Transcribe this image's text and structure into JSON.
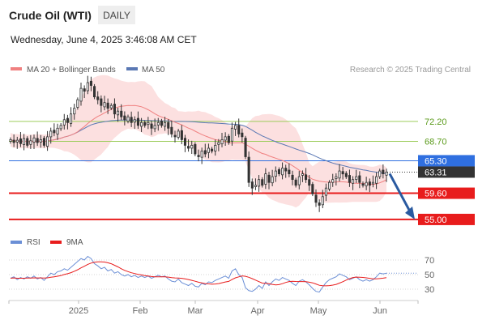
{
  "header": {
    "title": "Crude Oil (WTI)",
    "period": "DAILY",
    "datetime": "Wednesday, June 4, 2025 3:46:08 AM CET"
  },
  "legend": {
    "ma20": "MA 20 + Bollinger Bands",
    "ma50": "MA 50",
    "credit": "Research © 2025 Trading Central"
  },
  "rsi_legend": {
    "rsi": "RSI",
    "ma9": "9MA"
  },
  "colors": {
    "ma20": "#f08080",
    "ma50": "#5a78b4",
    "band": "#fbdada",
    "resistance": "#9ccc5a",
    "support": "#e81c1c",
    "current": "#2f6fe0",
    "last": "#333333",
    "arrow": "#2a5aa0",
    "rsi": "#6b8fd6",
    "rsi_ma": "#e81c1c"
  },
  "chart_data": {
    "type": "candlestick",
    "symbol": "Crude Oil (WTI)",
    "timeframe": "DAILY",
    "x_axis": {
      "labels": [
        "2025",
        "Feb",
        "Mar",
        "Apr",
        "May",
        "Jun"
      ]
    },
    "y_range": [
      53,
      80
    ],
    "levels": [
      {
        "name": "resistance",
        "value": 72.2,
        "label": "72.20"
      },
      {
        "name": "resistance",
        "value": 68.7,
        "label": "68.70"
      },
      {
        "name": "current",
        "value": 65.3,
        "label": "65.30"
      },
      {
        "name": "last",
        "value": 63.31,
        "label": "63.31"
      },
      {
        "name": "support",
        "value": 59.6,
        "label": "59.60"
      },
      {
        "name": "support",
        "value": 55.0,
        "label": "55.00"
      }
    ],
    "forecast_target": 55.0,
    "closes": [
      69.0,
      68.5,
      68.9,
      68.3,
      69.2,
      68.0,
      68.8,
      69.3,
      68.5,
      69.0,
      68.0,
      69.5,
      70.5,
      70.2,
      71.0,
      71.5,
      72.5,
      72.0,
      73.5,
      74.5,
      76.0,
      78.0,
      77.5,
      79.0,
      78.5,
      76.5,
      76.0,
      75.0,
      75.5,
      74.5,
      75.0,
      73.5,
      74.0,
      73.0,
      72.5,
      73.0,
      72.0,
      72.5,
      71.5,
      72.0,
      71.5,
      72.0,
      71.0,
      71.5,
      72.0,
      71.5,
      72.0,
      71.0,
      70.0,
      69.5,
      70.5,
      69.0,
      68.0,
      67.5,
      68.0,
      66.5,
      66.0,
      67.0,
      66.5,
      67.5,
      67.0,
      68.0,
      68.5,
      69.0,
      69.5,
      68.5,
      71.0,
      71.5,
      70.0,
      69.5,
      66.0,
      61.5,
      60.5,
      61.0,
      62.0,
      61.0,
      63.0,
      61.5,
      62.5,
      63.5,
      63.0,
      64.0,
      63.5,
      63.0,
      62.0,
      61.0,
      62.5,
      63.0,
      62.0,
      61.0,
      59.5,
      58.0,
      57.5,
      59.0,
      60.5,
      61.5,
      62.0,
      62.5,
      63.5,
      63.0,
      62.5,
      61.5,
      62.0,
      62.5,
      61.5,
      61.0,
      61.5,
      61.0,
      61.5,
      62.5,
      63.5,
      63.0,
      63.31
    ],
    "rsi": {
      "name": "RSI",
      "ma_name": "9MA",
      "y_ticks": [
        30,
        50,
        70
      ],
      "values": [
        45,
        47,
        43,
        46,
        44,
        47,
        45,
        48,
        44,
        46,
        42,
        47,
        52,
        50,
        54,
        55,
        58,
        56,
        60,
        64,
        68,
        72,
        70,
        75,
        72,
        65,
        62,
        58,
        60,
        55,
        57,
        52,
        54,
        50,
        48,
        50,
        47,
        49,
        46,
        48,
        46,
        48,
        45,
        47,
        49,
        47,
        48,
        44,
        41,
        40,
        44,
        39,
        37,
        35,
        38,
        34,
        33,
        38,
        36,
        40,
        39,
        42,
        44,
        46,
        48,
        45,
        55,
        58,
        50,
        46,
        32,
        28,
        27,
        30,
        35,
        31,
        40,
        35,
        40,
        44,
        42,
        46,
        44,
        42,
        38,
        35,
        41,
        43,
        40,
        36,
        31,
        27,
        26,
        33,
        39,
        43,
        45,
        47,
        51,
        49,
        47,
        43,
        45,
        47,
        43,
        41,
        43,
        41,
        43,
        47,
        52,
        51,
        52
      ],
      "ma9": [
        45,
        45.5,
        45,
        45,
        45,
        45.2,
        45.3,
        45.6,
        45.4,
        45.5,
        45.2,
        45.6,
        46.4,
        46.9,
        47.8,
        48.6,
        50.1,
        51.2,
        52.7,
        54.5,
        56.7,
        59.2,
        61.4,
        64,
        65.8,
        66.9,
        67.4,
        67.4,
        67.2,
        66.2,
        64.9,
        62.8,
        60.6,
        58,
        55.8,
        54.1,
        52.6,
        51.4,
        50.3,
        49.5,
        48.6,
        48.1,
        47.3,
        47,
        47,
        46.9,
        46.9,
        46.5,
        45.9,
        45.4,
        45.3,
        44.9,
        44.1,
        43.2,
        42.1,
        40.9,
        39.6,
        38.7,
        37.7,
        37.3,
        36.8,
        37.1,
        37.7,
        38.8,
        39.9,
        40.7,
        43.2,
        45.6,
        46.9,
        48.2,
        47.7,
        46.3,
        44.4,
        42.4,
        40.3,
        38.3,
        38,
        37.4,
        36.6,
        35.8,
        36.2,
        37.6,
        39.2,
        40.4,
        40.8,
        40.6,
        40.4,
        40.4,
        40.3,
        39.6,
        38.7,
        37.1,
        35.3,
        34.7,
        34.6,
        34.9,
        35.6,
        36.6,
        38.3,
        40.2,
        42.4,
        44.3,
        46,
        46.5,
        46.4,
        46.1,
        45.6,
        44.9,
        44.1,
        44.1,
        44.5,
        45.1,
        45.9
      ]
    }
  }
}
